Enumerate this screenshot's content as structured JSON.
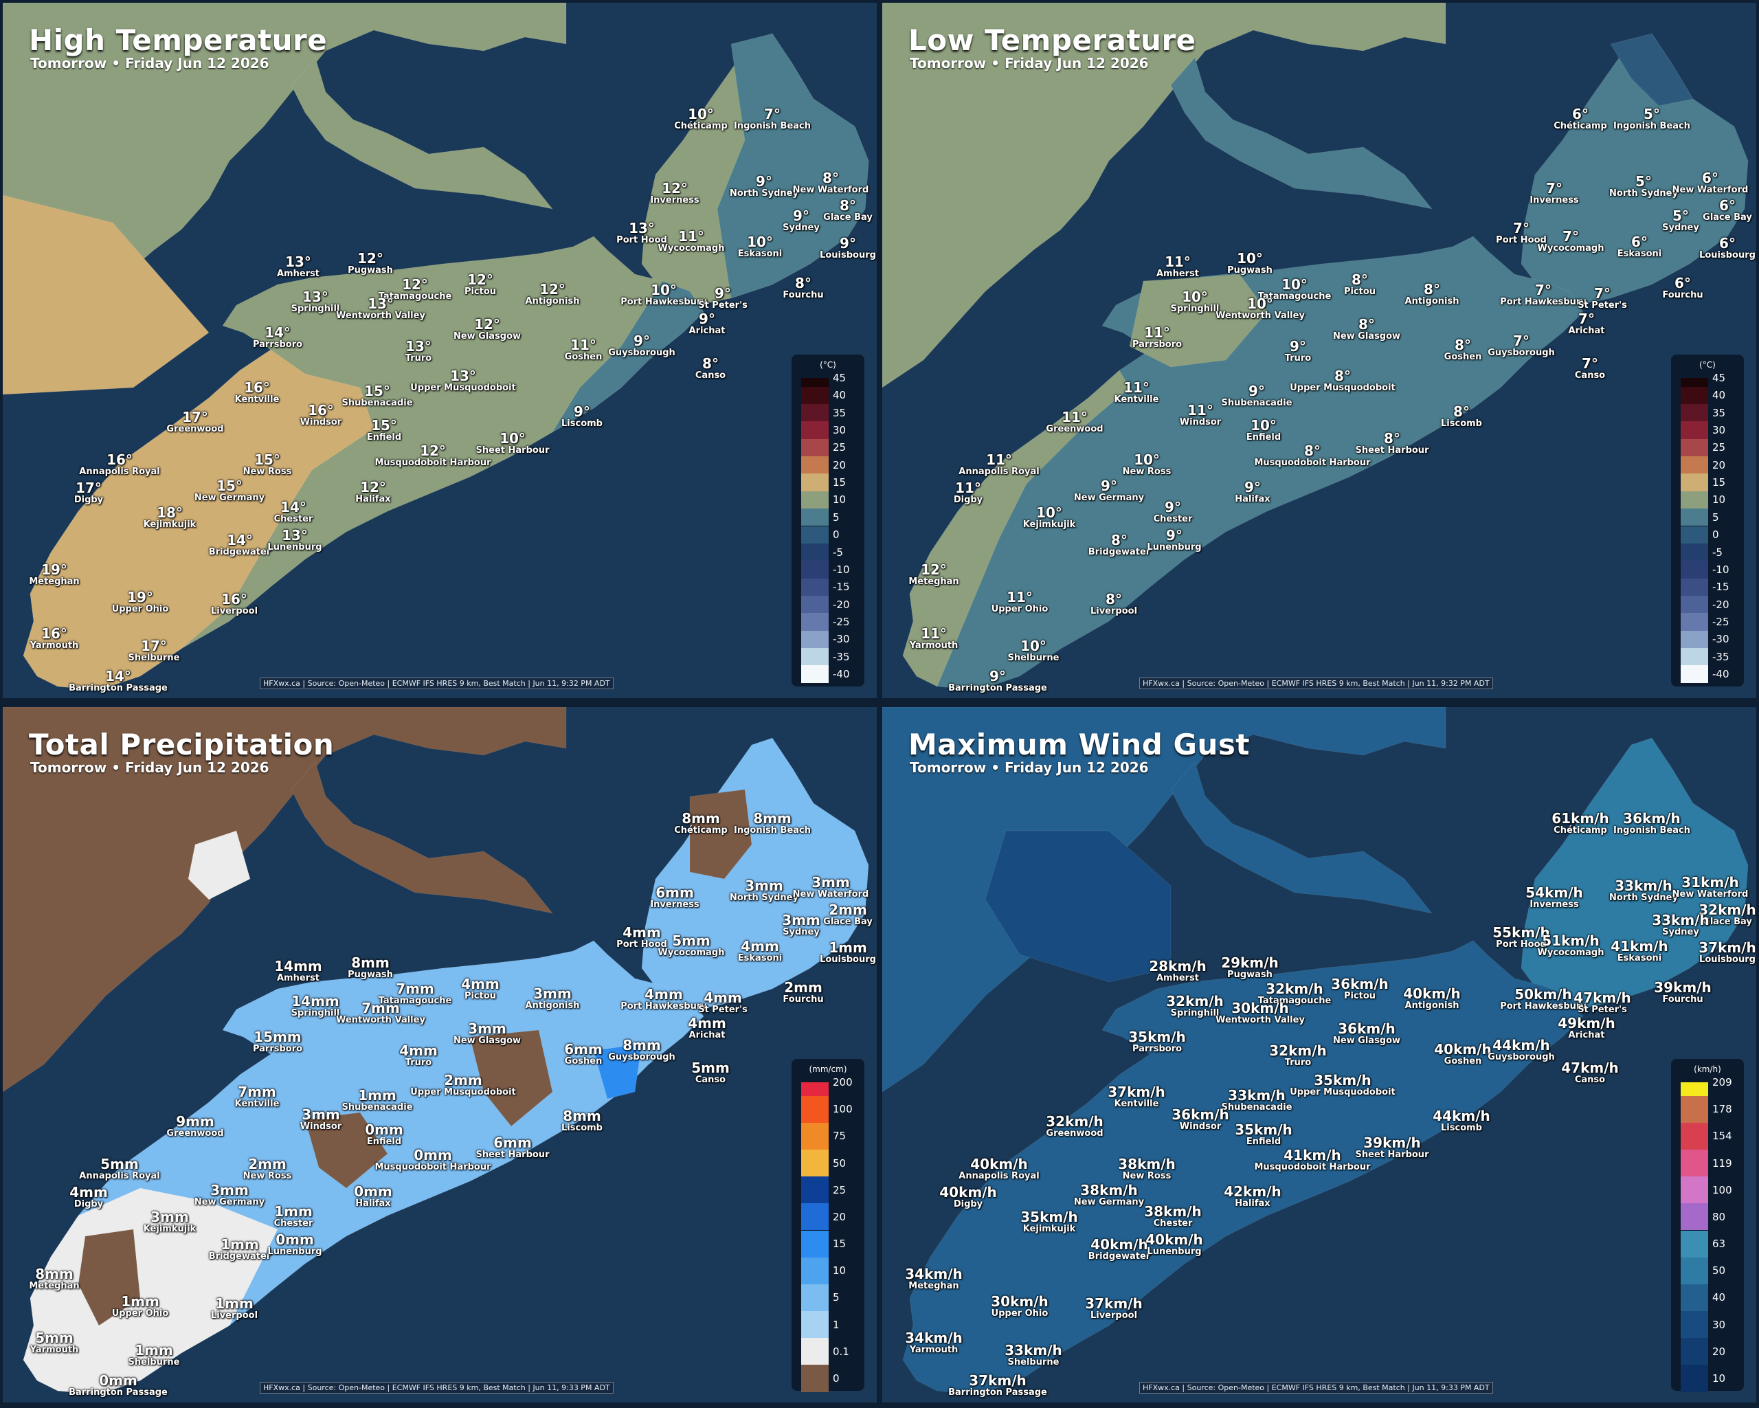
{
  "panels": [
    {
      "id": "high",
      "title": "High Temperature",
      "subtitle": "Tomorrow • Friday Jun 12 2026",
      "credit": "HFXwx.ca | Source: Open-Meteo | ECMWF IFS HRES 9 km, Best Match | Jun 11, 9:32 PM ADT",
      "legend": {
        "unit": "(°C)",
        "ticks": [
          "45",
          "40",
          "35",
          "30",
          "25",
          "20",
          "15",
          "10",
          "5",
          "0",
          "-5",
          "-10",
          "-15",
          "-20",
          "-25",
          "-30",
          "-35",
          "-40"
        ],
        "colors": [
          "#1b0507",
          "#3d0a12",
          "#5e1526",
          "#8a2235",
          "#a8474a",
          "#c47a4e",
          "#cfae74",
          "#8d9f7d",
          "#4b7d8e",
          "#2d5a7c",
          "#233f6e",
          "#2c3f75",
          "#3b4e86",
          "#4d6299",
          "#6679ad",
          "#8aa2c7",
          "#bcd6e6",
          "#f4f8fb"
        ]
      },
      "labels": [
        {
          "v": "10°",
          "n": "Chéticamp"
        },
        {
          "v": "7°",
          "n": "Ingonish Beach"
        },
        {
          "v": "12°",
          "n": "Inverness"
        },
        {
          "v": "9°",
          "n": "North Sydney"
        },
        {
          "v": "8°",
          "n": "New Waterford"
        },
        {
          "v": "8°",
          "n": "Glace Bay"
        },
        {
          "v": "9°",
          "n": "Sydney"
        },
        {
          "v": "13°",
          "n": "Port Hood"
        },
        {
          "v": "11°",
          "n": "Wycocomagh"
        },
        {
          "v": "10°",
          "n": "Eskasoni"
        },
        {
          "v": "9°",
          "n": "Louisbourg"
        },
        {
          "v": "13°",
          "n": "Amherst"
        },
        {
          "v": "12°",
          "n": "Pugwash"
        },
        {
          "v": "12°",
          "n": "Tatamagouche"
        },
        {
          "v": "12°",
          "n": "Pictou"
        },
        {
          "v": "12°",
          "n": "Antigonish"
        },
        {
          "v": "13°",
          "n": "Springhill"
        },
        {
          "v": "13°",
          "n": "Wentworth Valley"
        },
        {
          "v": "10°",
          "n": "Port Hawkesbury"
        },
        {
          "v": "9°",
          "n": "St Peter's"
        },
        {
          "v": "8°",
          "n": "Fourchu"
        },
        {
          "v": "9°",
          "n": "Arichat"
        },
        {
          "v": "14°",
          "n": "Parrsboro"
        },
        {
          "v": "12°",
          "n": "New Glasgow"
        },
        {
          "v": "13°",
          "n": "Truro"
        },
        {
          "v": "11°",
          "n": "Goshen"
        },
        {
          "v": "9°",
          "n": "Guysborough"
        },
        {
          "v": "8°",
          "n": "Canso"
        },
        {
          "v": "16°",
          "n": "Kentville"
        },
        {
          "v": "15°",
          "n": "Shubenacadie"
        },
        {
          "v": "13°",
          "n": "Upper Musquodoboit"
        },
        {
          "v": "17°",
          "n": "Greenwood"
        },
        {
          "v": "16°",
          "n": "Windsor"
        },
        {
          "v": "15°",
          "n": "Enfield"
        },
        {
          "v": "9°",
          "n": "Liscomb"
        },
        {
          "v": "16°",
          "n": "Annapolis Royal"
        },
        {
          "v": "15°",
          "n": "New Ross"
        },
        {
          "v": "12°",
          "n": "Musquodoboit Harbour"
        },
        {
          "v": "10°",
          "n": "Sheet Harbour"
        },
        {
          "v": "17°",
          "n": "Digby"
        },
        {
          "v": "15°",
          "n": "New Germany"
        },
        {
          "v": "12°",
          "n": "Halifax"
        },
        {
          "v": "18°",
          "n": "Kejimkujik"
        },
        {
          "v": "14°",
          "n": "Chester"
        },
        {
          "v": "14°",
          "n": "Bridgewater"
        },
        {
          "v": "13°",
          "n": "Lunenburg"
        },
        {
          "v": "19°",
          "n": "Meteghan"
        },
        {
          "v": "19°",
          "n": "Upper Ohio"
        },
        {
          "v": "16°",
          "n": "Liverpool"
        },
        {
          "v": "16°",
          "n": "Yarmouth"
        },
        {
          "v": "17°",
          "n": "Shelburne"
        },
        {
          "v": "14°",
          "n": "Barrington Passage"
        }
      ]
    },
    {
      "id": "low",
      "title": "Low Temperature",
      "subtitle": "Tomorrow • Friday Jun 12 2026",
      "credit": "HFXwx.ca | Source: Open-Meteo | ECMWF IFS HRES 9 km, Best Match | Jun 11, 9:32 PM ADT",
      "legend": {
        "unit": "(°C)",
        "ticks": [
          "45",
          "40",
          "35",
          "30",
          "25",
          "20",
          "15",
          "10",
          "5",
          "0",
          "-5",
          "-10",
          "-15",
          "-20",
          "-25",
          "-30",
          "-35",
          "-40"
        ],
        "colors": [
          "#1b0507",
          "#3d0a12",
          "#5e1526",
          "#8a2235",
          "#a8474a",
          "#c47a4e",
          "#cfae74",
          "#8d9f7d",
          "#4b7d8e",
          "#2d5a7c",
          "#233f6e",
          "#2c3f75",
          "#3b4e86",
          "#4d6299",
          "#6679ad",
          "#8aa2c7",
          "#bcd6e6",
          "#f4f8fb"
        ]
      },
      "labels": [
        {
          "v": "6°",
          "n": "Chéticamp"
        },
        {
          "v": "5°",
          "n": "Ingonish Beach"
        },
        {
          "v": "7°",
          "n": "Inverness"
        },
        {
          "v": "5°",
          "n": "North Sydney"
        },
        {
          "v": "6°",
          "n": "New Waterford"
        },
        {
          "v": "6°",
          "n": "Glace Bay"
        },
        {
          "v": "5°",
          "n": "Sydney"
        },
        {
          "v": "7°",
          "n": "Port Hood"
        },
        {
          "v": "7°",
          "n": "Wycocomagh"
        },
        {
          "v": "6°",
          "n": "Eskasoni"
        },
        {
          "v": "6°",
          "n": "Louisbourg"
        },
        {
          "v": "11°",
          "n": "Amherst"
        },
        {
          "v": "10°",
          "n": "Pugwash"
        },
        {
          "v": "10°",
          "n": "Tatamagouche"
        },
        {
          "v": "8°",
          "n": "Pictou"
        },
        {
          "v": "8°",
          "n": "Antigonish"
        },
        {
          "v": "10°",
          "n": "Springhill"
        },
        {
          "v": "10°",
          "n": "Wentworth Valley"
        },
        {
          "v": "7°",
          "n": "Port Hawkesbury"
        },
        {
          "v": "7°",
          "n": "St Peter's"
        },
        {
          "v": "6°",
          "n": "Fourchu"
        },
        {
          "v": "7°",
          "n": "Arichat"
        },
        {
          "v": "11°",
          "n": "Parrsboro"
        },
        {
          "v": "8°",
          "n": "New Glasgow"
        },
        {
          "v": "9°",
          "n": "Truro"
        },
        {
          "v": "8°",
          "n": "Goshen"
        },
        {
          "v": "7°",
          "n": "Guysborough"
        },
        {
          "v": "7°",
          "n": "Canso"
        },
        {
          "v": "11°",
          "n": "Kentville"
        },
        {
          "v": "9°",
          "n": "Shubenacadie"
        },
        {
          "v": "8°",
          "n": "Upper Musquodoboit"
        },
        {
          "v": "11°",
          "n": "Greenwood"
        },
        {
          "v": "11°",
          "n": "Windsor"
        },
        {
          "v": "10°",
          "n": "Enfield"
        },
        {
          "v": "8°",
          "n": "Liscomb"
        },
        {
          "v": "11°",
          "n": "Annapolis Royal"
        },
        {
          "v": "10°",
          "n": "New Ross"
        },
        {
          "v": "8°",
          "n": "Musquodoboit Harbour"
        },
        {
          "v": "8°",
          "n": "Sheet Harbour"
        },
        {
          "v": "11°",
          "n": "Digby"
        },
        {
          "v": "9°",
          "n": "New Germany"
        },
        {
          "v": "9°",
          "n": "Halifax"
        },
        {
          "v": "10°",
          "n": "Kejimkujik"
        },
        {
          "v": "9°",
          "n": "Chester"
        },
        {
          "v": "8°",
          "n": "Bridgewater"
        },
        {
          "v": "9°",
          "n": "Lunenburg"
        },
        {
          "v": "12°",
          "n": "Meteghan"
        },
        {
          "v": "11°",
          "n": "Upper Ohio"
        },
        {
          "v": "8°",
          "n": "Liverpool"
        },
        {
          "v": "11°",
          "n": "Yarmouth"
        },
        {
          "v": "10°",
          "n": "Shelburne"
        },
        {
          "v": "9°",
          "n": "Barrington Passage"
        }
      ]
    },
    {
      "id": "precip",
      "title": "Total Precipitation",
      "subtitle": "Tomorrow • Friday Jun 12 2026",
      "credit": "HFXwx.ca | Source: Open-Meteo | ECMWF IFS HRES 9 km, Best Match | Jun 11, 9:33 PM ADT",
      "legend": {
        "unit": "(mm/cm)",
        "ticks": [
          "200",
          "100",
          "75",
          "50",
          "25",
          "20",
          "15",
          "10",
          "5",
          "1",
          "0.1",
          "0"
        ],
        "colors": [
          "#e5283f",
          "#f4561f",
          "#f08a27",
          "#f2b63d",
          "#0d3f96",
          "#1f6bd8",
          "#2d8cef",
          "#4ea3ef",
          "#7bbcf1",
          "#a7d2f2",
          "#ececec",
          "#7a5a45"
        ]
      },
      "labels": [
        {
          "v": "8mm",
          "n": "Chéticamp"
        },
        {
          "v": "8mm",
          "n": "Ingonish Beach"
        },
        {
          "v": "6mm",
          "n": "Inverness"
        },
        {
          "v": "3mm",
          "n": "North Sydney"
        },
        {
          "v": "3mm",
          "n": "New Waterford"
        },
        {
          "v": "2mm",
          "n": "Glace Bay"
        },
        {
          "v": "3mm",
          "n": "Sydney"
        },
        {
          "v": "4mm",
          "n": "Port Hood"
        },
        {
          "v": "5mm",
          "n": "Wycocomagh"
        },
        {
          "v": "4mm",
          "n": "Eskasoni"
        },
        {
          "v": "1mm",
          "n": "Louisbourg"
        },
        {
          "v": "14mm",
          "n": "Amherst"
        },
        {
          "v": "8mm",
          "n": "Pugwash"
        },
        {
          "v": "7mm",
          "n": "Tatamagouche"
        },
        {
          "v": "4mm",
          "n": "Pictou"
        },
        {
          "v": "3mm",
          "n": "Antigonish"
        },
        {
          "v": "14mm",
          "n": "Springhill"
        },
        {
          "v": "7mm",
          "n": "Wentworth Valley"
        },
        {
          "v": "4mm",
          "n": "Port Hawkesbury"
        },
        {
          "v": "4mm",
          "n": "St Peter's"
        },
        {
          "v": "2mm",
          "n": "Fourchu"
        },
        {
          "v": "4mm",
          "n": "Arichat"
        },
        {
          "v": "15mm",
          "n": "Parrsboro"
        },
        {
          "v": "3mm",
          "n": "New Glasgow"
        },
        {
          "v": "4mm",
          "n": "Truro"
        },
        {
          "v": "6mm",
          "n": "Goshen"
        },
        {
          "v": "8mm",
          "n": "Guysborough"
        },
        {
          "v": "5mm",
          "n": "Canso"
        },
        {
          "v": "7mm",
          "n": "Kentville"
        },
        {
          "v": "1mm",
          "n": "Shubenacadie"
        },
        {
          "v": "2mm",
          "n": "Upper Musquodoboit"
        },
        {
          "v": "9mm",
          "n": "Greenwood"
        },
        {
          "v": "3mm",
          "n": "Windsor"
        },
        {
          "v": "0mm",
          "n": "Enfield"
        },
        {
          "v": "8mm",
          "n": "Liscomb"
        },
        {
          "v": "5mm",
          "n": "Annapolis Royal"
        },
        {
          "v": "2mm",
          "n": "New Ross"
        },
        {
          "v": "0mm",
          "n": "Musquodoboit Harbour"
        },
        {
          "v": "6mm",
          "n": "Sheet Harbour"
        },
        {
          "v": "4mm",
          "n": "Digby"
        },
        {
          "v": "3mm",
          "n": "New Germany"
        },
        {
          "v": "0mm",
          "n": "Halifax"
        },
        {
          "v": "3mm",
          "n": "Kejimkujik"
        },
        {
          "v": "1mm",
          "n": "Chester"
        },
        {
          "v": "1mm",
          "n": "Bridgewater"
        },
        {
          "v": "0mm",
          "n": "Lunenburg"
        },
        {
          "v": "8mm",
          "n": "Meteghan"
        },
        {
          "v": "1mm",
          "n": "Upper Ohio"
        },
        {
          "v": "1mm",
          "n": "Liverpool"
        },
        {
          "v": "5mm",
          "n": "Yarmouth"
        },
        {
          "v": "1mm",
          "n": "Shelburne"
        },
        {
          "v": "0mm",
          "n": "Barrington Passage"
        }
      ]
    },
    {
      "id": "wind",
      "title": "Maximum Wind Gust",
      "subtitle": "Tomorrow • Friday Jun 12 2026",
      "credit": "HFXwx.ca | Source: Open-Meteo | ECMWF IFS HRES 9 km, Best Match | Jun 11, 9:33 PM ADT",
      "legend": {
        "unit": "(km/h)",
        "ticks": [
          "209",
          "178",
          "154",
          "119",
          "100",
          "80",
          "63",
          "50",
          "40",
          "30",
          "20",
          "10"
        ],
        "colors": [
          "#f6ea1c",
          "#c8704a",
          "#d9404f",
          "#e0568a",
          "#d277c8",
          "#a569c9",
          "#3a8fb2",
          "#2e7ba3",
          "#23608f",
          "#184b7f",
          "#113d71",
          "#0c3164"
        ]
      },
      "labels": [
        {
          "v": "61km/h",
          "n": "Chéticamp"
        },
        {
          "v": "36km/h",
          "n": "Ingonish Beach"
        },
        {
          "v": "54km/h",
          "n": "Inverness"
        },
        {
          "v": "33km/h",
          "n": "North Sydney"
        },
        {
          "v": "31km/h",
          "n": "New Waterford"
        },
        {
          "v": "32km/h",
          "n": "Glace Bay"
        },
        {
          "v": "33km/h",
          "n": "Sydney"
        },
        {
          "v": "55km/h",
          "n": "Port Hood"
        },
        {
          "v": "51km/h",
          "n": "Wycocomagh"
        },
        {
          "v": "41km/h",
          "n": "Eskasoni"
        },
        {
          "v": "37km/h",
          "n": "Louisbourg"
        },
        {
          "v": "28km/h",
          "n": "Amherst"
        },
        {
          "v": "29km/h",
          "n": "Pugwash"
        },
        {
          "v": "32km/h",
          "n": "Tatamagouche"
        },
        {
          "v": "36km/h",
          "n": "Pictou"
        },
        {
          "v": "40km/h",
          "n": "Antigonish"
        },
        {
          "v": "32km/h",
          "n": "Springhill"
        },
        {
          "v": "30km/h",
          "n": "Wentworth Valley"
        },
        {
          "v": "50km/h",
          "n": "Port Hawkesbury"
        },
        {
          "v": "47km/h",
          "n": "St Peter's"
        },
        {
          "v": "39km/h",
          "n": "Fourchu"
        },
        {
          "v": "49km/h",
          "n": "Arichat"
        },
        {
          "v": "35km/h",
          "n": "Parrsboro"
        },
        {
          "v": "36km/h",
          "n": "New Glasgow"
        },
        {
          "v": "32km/h",
          "n": "Truro"
        },
        {
          "v": "40km/h",
          "n": "Goshen"
        },
        {
          "v": "44km/h",
          "n": "Guysborough"
        },
        {
          "v": "47km/h",
          "n": "Canso"
        },
        {
          "v": "37km/h",
          "n": "Kentville"
        },
        {
          "v": "33km/h",
          "n": "Shubenacadie"
        },
        {
          "v": "35km/h",
          "n": "Upper Musquodoboit"
        },
        {
          "v": "32km/h",
          "n": "Greenwood"
        },
        {
          "v": "36km/h",
          "n": "Windsor"
        },
        {
          "v": "35km/h",
          "n": "Enfield"
        },
        {
          "v": "44km/h",
          "n": "Liscomb"
        },
        {
          "v": "40km/h",
          "n": "Annapolis Royal"
        },
        {
          "v": "38km/h",
          "n": "New Ross"
        },
        {
          "v": "41km/h",
          "n": "Musquodoboit Harbour"
        },
        {
          "v": "39km/h",
          "n": "Sheet Harbour"
        },
        {
          "v": "40km/h",
          "n": "Digby"
        },
        {
          "v": "38km/h",
          "n": "New Germany"
        },
        {
          "v": "42km/h",
          "n": "Halifax"
        },
        {
          "v": "35km/h",
          "n": "Kejimkujik"
        },
        {
          "v": "38km/h",
          "n": "Chester"
        },
        {
          "v": "40km/h",
          "n": "Bridgewater"
        },
        {
          "v": "40km/h",
          "n": "Lunenburg"
        },
        {
          "v": "34km/h",
          "n": "Meteghan"
        },
        {
          "v": "30km/h",
          "n": "Upper Ohio"
        },
        {
          "v": "37km/h",
          "n": "Liverpool"
        },
        {
          "v": "34km/h",
          "n": "Yarmouth"
        },
        {
          "v": "33km/h",
          "n": "Shelburne"
        },
        {
          "v": "37km/h",
          "n": "Barrington Passage"
        }
      ]
    }
  ]
}
